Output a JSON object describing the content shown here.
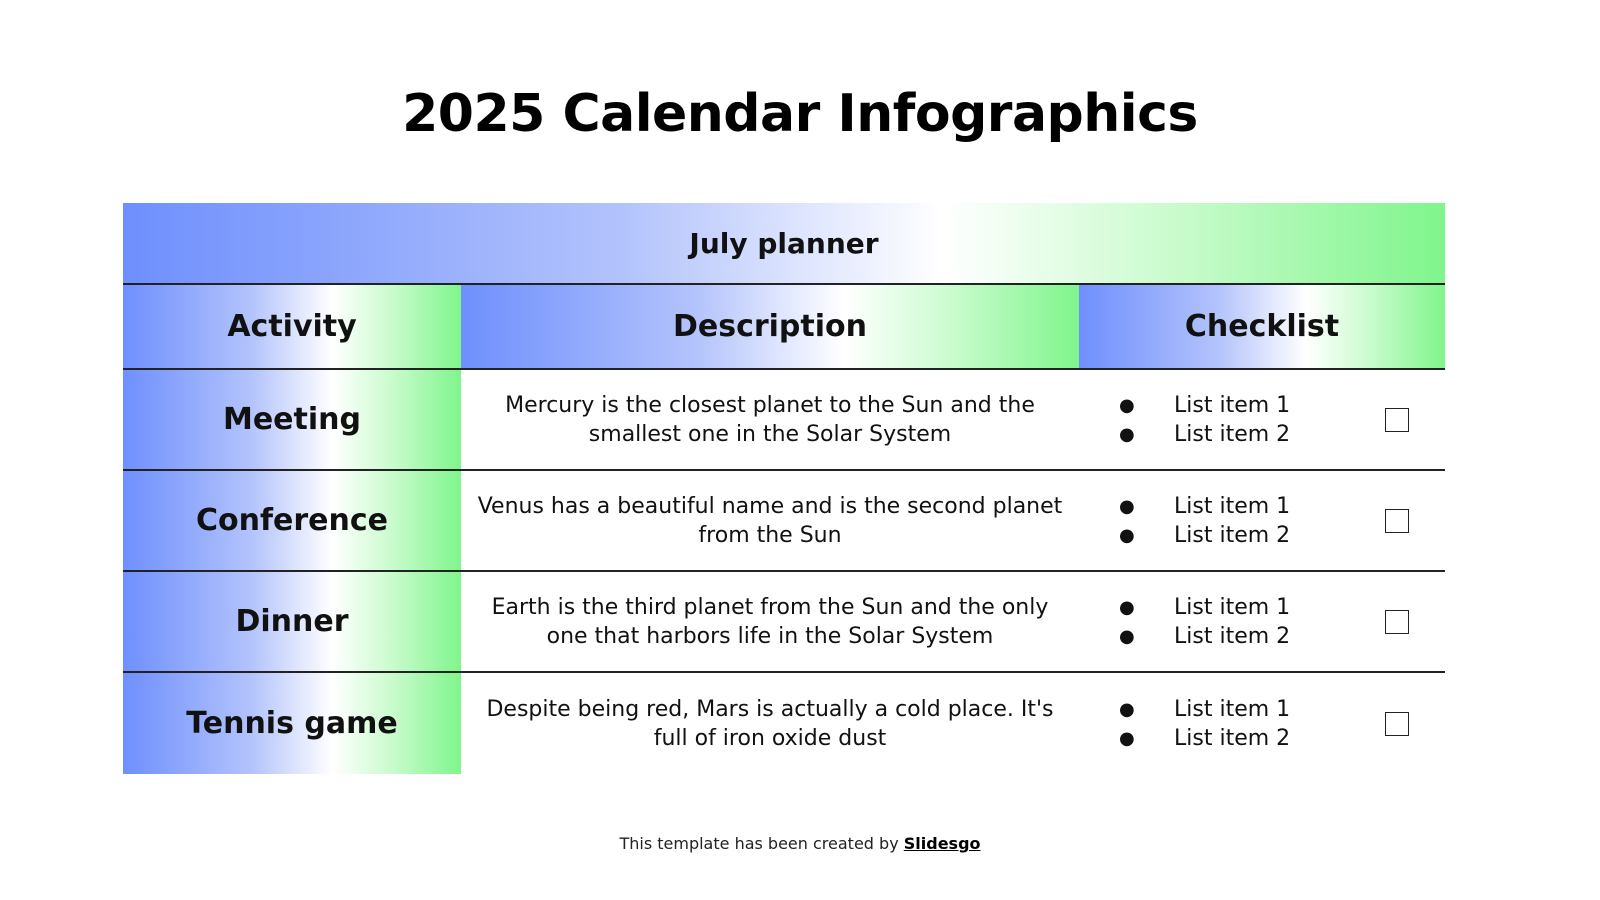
{
  "title": "2025 Calendar Infographics",
  "table": {
    "caption": "July planner",
    "headers": [
      "Activity",
      "Description",
      "Checklist"
    ],
    "rows": [
      {
        "activity": "Meeting",
        "description": "Mercury is the closest planet to the Sun and the smallest one in the Solar System",
        "items": [
          "List item 1",
          "List item 2"
        ],
        "checked": false
      },
      {
        "activity": "Conference",
        "description": "Venus has a beautiful name and is the second planet from the Sun",
        "items": [
          "List item 1",
          "List item 2"
        ],
        "checked": false
      },
      {
        "activity": "Dinner",
        "description": "Earth is the third planet from the Sun and the only one that harbors life in the Solar System",
        "items": [
          "List item 1",
          "List item 2"
        ],
        "checked": false
      },
      {
        "activity": "Tennis game",
        "description": "Despite being red, Mars is actually a cold place. It's full of iron oxide dust",
        "items": [
          "List item 1",
          "List item 2"
        ],
        "checked": false
      }
    ]
  },
  "footer": {
    "text": "This template has been created by ",
    "link": "Slidesgo"
  },
  "colors": {
    "gradient_start": "#6e8ffd",
    "gradient_end": "#7ff58c"
  }
}
